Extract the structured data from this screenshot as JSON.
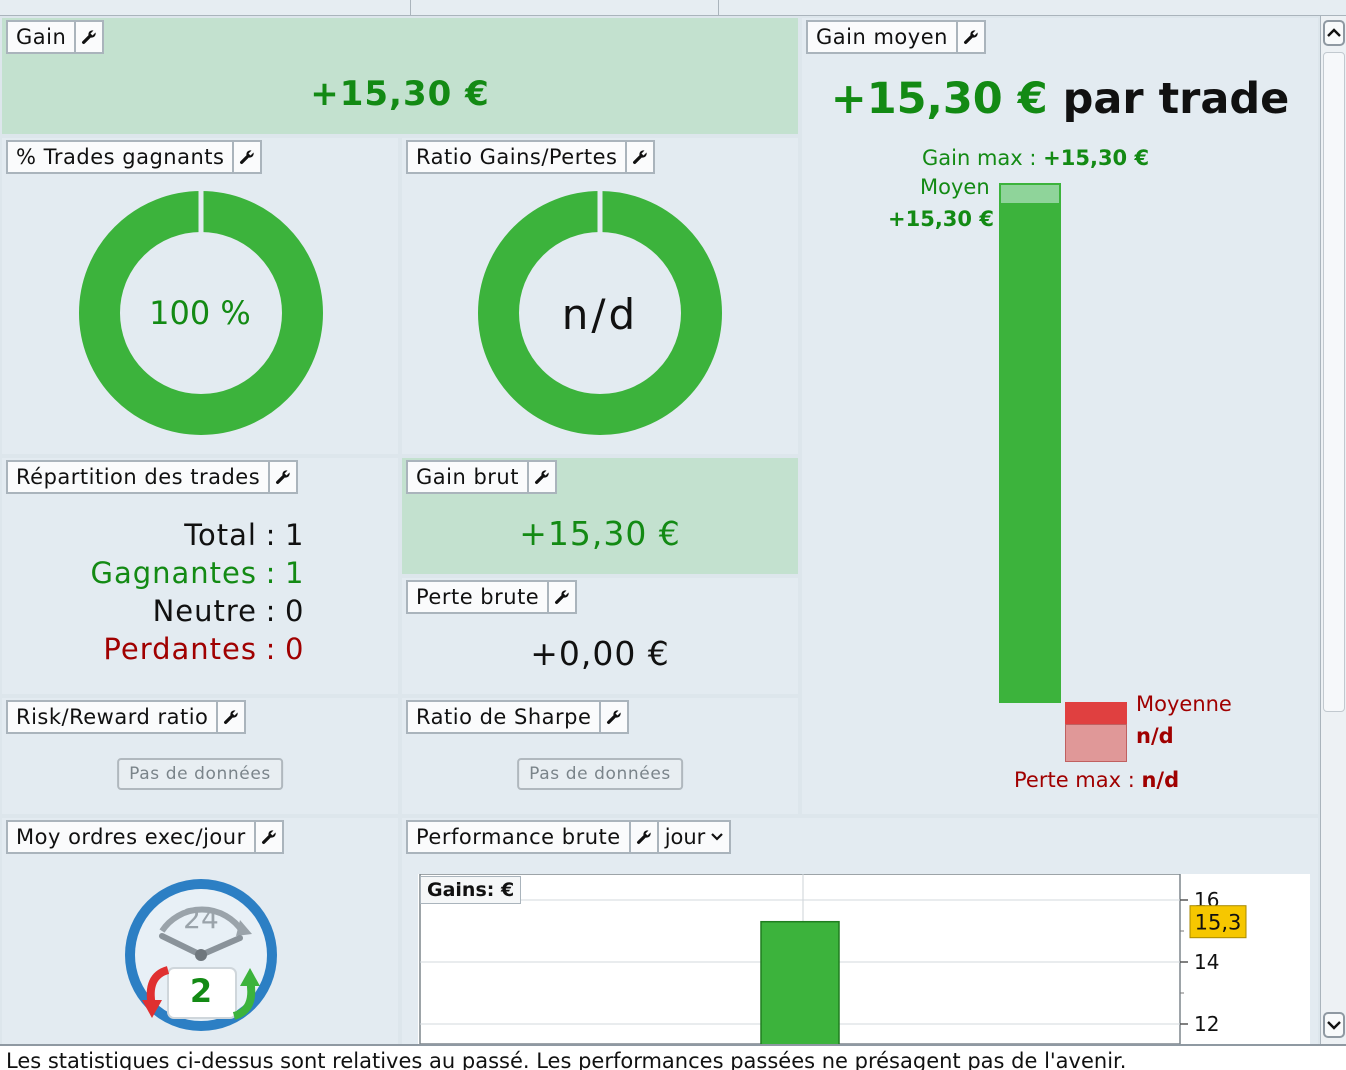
{
  "panels": {
    "gain": {
      "title": "Gain",
      "value": "+15,30 €"
    },
    "pct_trades": {
      "title": "% Trades gagnants",
      "value": "100 %",
      "fraction": 1.0
    },
    "ratio_gp": {
      "title": "Ratio Gains/Pertes",
      "value": "n/d"
    },
    "gain_moyen": {
      "title": "Gain moyen",
      "value": "+15,30 €",
      "suffix": "par trade",
      "gain_max_label": "Gain max : ",
      "gain_max_value": "+15,30 €",
      "moyen_label": "Moyen",
      "moyen_value": "+15,30 €",
      "moyenne_label": "Moyenne",
      "moyenne_value": "n/d",
      "perte_max_label": "Perte max : ",
      "perte_max_value": "n/d"
    },
    "repartition": {
      "title": "Répartition des trades",
      "rows": [
        {
          "label": "Total",
          "sep": ":",
          "value": "1"
        },
        {
          "label": "Gagnantes",
          "sep": ":",
          "value": "1"
        },
        {
          "label": "Neutre",
          "sep": ":",
          "value": "0"
        },
        {
          "label": "Perdantes",
          "sep": ":",
          "value": "0"
        }
      ]
    },
    "gain_brut": {
      "title": "Gain brut",
      "value": "+15,30 €"
    },
    "perte_brute": {
      "title": "Perte brute",
      "value": "+0,00 €"
    },
    "risk_reward": {
      "title": "Risk/Reward ratio",
      "nodata": "Pas de données"
    },
    "sharpe": {
      "title": "Ratio de Sharpe",
      "nodata": "Pas de données"
    },
    "moy_ordres": {
      "title": "Moy ordres exec/jour",
      "clock_top": "24",
      "clock_num": "2"
    },
    "performance": {
      "title": "Performance brute",
      "period": "jour",
      "chart_label": "Gains: €"
    }
  },
  "chart_data": {
    "type": "bar",
    "categories": [
      ""
    ],
    "values": [
      15.3
    ],
    "ylabel": "Gains: €",
    "ylim": [
      11.4,
      16.4
    ],
    "yticks": [
      "16",
      "14",
      "12"
    ],
    "current_value_label": "15,3",
    "grid": true
  },
  "footer": "Les statistiques ci-dessus sont relatives au passé. Les performances passées ne présagent pas de l'avenir.",
  "colors": {
    "green": "#3cb33c",
    "dark_green": "#138a14",
    "red": "#a00000",
    "bar_red": "#e04040",
    "panel_bg": "#e3ebf1",
    "panel_green": "#c3e1cf"
  }
}
